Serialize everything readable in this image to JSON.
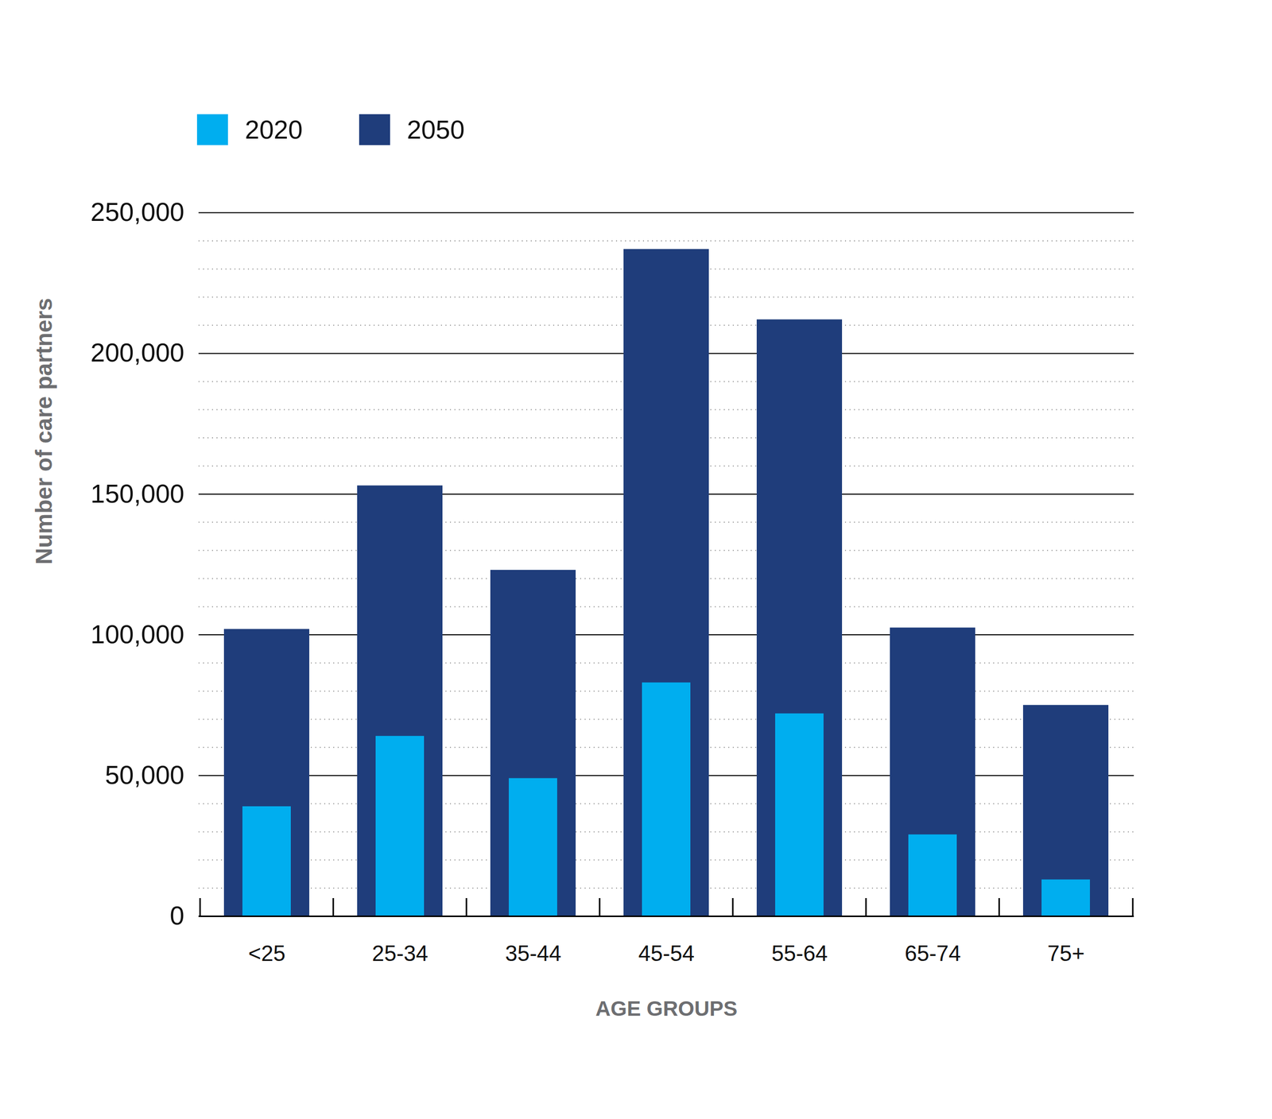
{
  "chart_data": {
    "type": "bar",
    "categories": [
      "<25",
      "25-34",
      "35-44",
      "45-54",
      "55-64",
      "65-74",
      "75+"
    ],
    "series": [
      {
        "name": "2020",
        "color": "#00aeef",
        "values": [
          39000,
          64000,
          49000,
          83000,
          72000,
          29000,
          13000
        ]
      },
      {
        "name": "2050",
        "color": "#1f3d7b",
        "values": [
          102000,
          153000,
          123000,
          237000,
          212000,
          102500,
          75000
        ]
      }
    ],
    "x_label": "AGE GROUPS",
    "y_label": "Number of care partners",
    "ylim": [
      0,
      250000
    ],
    "yticks": [
      0,
      {
        "value": 50000,
        "label": "50,000"
      },
      {
        "value": 100000,
        "label": "100,000"
      },
      {
        "value": 150000,
        "label": "150,000"
      },
      {
        "value": 200000,
        "label": "200,000"
      },
      {
        "value": 250000,
        "label": "250,000"
      }
    ],
    "grid": true,
    "legend": "top-left"
  }
}
